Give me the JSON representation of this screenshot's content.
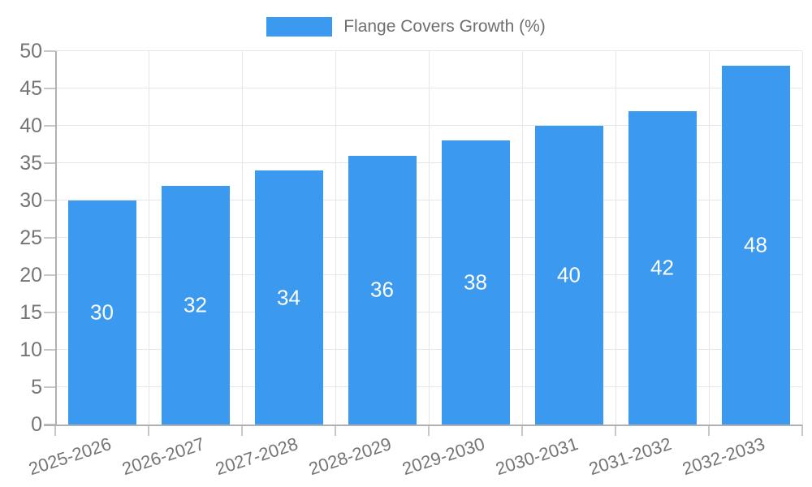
{
  "chart_data": {
    "type": "bar",
    "title": "Flange Covers Growth (%)",
    "legend_label": "Flange Covers Growth (%)",
    "legend_position": "top",
    "categories": [
      "2025-2026",
      "2026-2027",
      "2027-2028",
      "2028-2029",
      "2029-2030",
      "2030-2031",
      "2031-2032",
      "2032-2033"
    ],
    "values": [
      30,
      32,
      34,
      36,
      38,
      40,
      42,
      48
    ],
    "value_labels": [
      "30",
      "32",
      "34",
      "36",
      "38",
      "40",
      "42",
      "48"
    ],
    "xlabel": "",
    "ylabel": "",
    "ylim": [
      0,
      50
    ],
    "yticks": [
      0,
      5,
      10,
      15,
      20,
      25,
      30,
      35,
      40,
      45,
      50
    ],
    "grid": true,
    "colors": {
      "bar": "#3b99f0",
      "bar_value_text": "#ffffff",
      "axis_line": "#b0b0b0",
      "tick_mark": "#c7c7c7",
      "grid_line": "#e7e7e7",
      "tick_text": "#757575",
      "legend_text": "#6f6f6f"
    }
  }
}
